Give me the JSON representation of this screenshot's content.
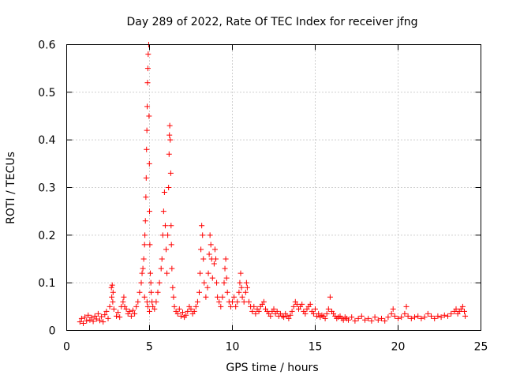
{
  "chart_data": {
    "type": "scatter",
    "title": "Day 289 of 2022, Rate Of TEC Index for receiver jfng",
    "xlabel": "GPS time / hours",
    "ylabel": "ROTI / TECUs",
    "xlim": [
      0,
      25
    ],
    "ylim": [
      0,
      0.6
    ],
    "xticks": [
      0,
      5,
      10,
      15,
      20,
      25
    ],
    "yticks": [
      0,
      0.1,
      0.2,
      0.3,
      0.4,
      0.5,
      0.6
    ],
    "xtick_labels": [
      "0",
      "5",
      "10",
      "15",
      "20",
      "25"
    ],
    "ytick_labels": [
      "0",
      "0.1",
      "0.2",
      "0.3",
      "0.4",
      "0.5",
      "0.6"
    ],
    "grid": true,
    "marker": "+",
    "color": "#ff0000",
    "points": [
      [
        0.8,
        0.018
      ],
      [
        0.9,
        0.025
      ],
      [
        1.0,
        0.015
      ],
      [
        1.1,
        0.028
      ],
      [
        1.2,
        0.02
      ],
      [
        1.3,
        0.032
      ],
      [
        1.4,
        0.022
      ],
      [
        1.5,
        0.027
      ],
      [
        1.6,
        0.019
      ],
      [
        1.7,
        0.03
      ],
      [
        1.8,
        0.024
      ],
      [
        1.9,
        0.035
      ],
      [
        2.0,
        0.021
      ],
      [
        2.1,
        0.029
      ],
      [
        2.2,
        0.018
      ],
      [
        2.3,
        0.033
      ],
      [
        2.4,
        0.04
      ],
      [
        2.5,
        0.025
      ],
      [
        2.6,
        0.05
      ],
      [
        2.7,
        0.09
      ],
      [
        2.75,
        0.095
      ],
      [
        2.8,
        0.08
      ],
      [
        2.72,
        0.07
      ],
      [
        2.78,
        0.06
      ],
      [
        2.85,
        0.045
      ],
      [
        3.0,
        0.03
      ],
      [
        3.1,
        0.038
      ],
      [
        3.2,
        0.028
      ],
      [
        3.3,
        0.05
      ],
      [
        3.4,
        0.06
      ],
      [
        3.45,
        0.07
      ],
      [
        3.5,
        0.05
      ],
      [
        3.6,
        0.045
      ],
      [
        3.7,
        0.035
      ],
      [
        3.8,
        0.04
      ],
      [
        3.9,
        0.03
      ],
      [
        4.0,
        0.042
      ],
      [
        4.1,
        0.035
      ],
      [
        4.2,
        0.05
      ],
      [
        4.3,
        0.06
      ],
      [
        4.4,
        0.08
      ],
      [
        4.5,
        0.1
      ],
      [
        4.55,
        0.12
      ],
      [
        4.6,
        0.13
      ],
      [
        4.65,
        0.15
      ],
      [
        4.7,
        0.18
      ],
      [
        4.72,
        0.2
      ],
      [
        4.75,
        0.23
      ],
      [
        4.78,
        0.28
      ],
      [
        4.8,
        0.32
      ],
      [
        4.82,
        0.38
      ],
      [
        4.84,
        0.42
      ],
      [
        4.86,
        0.47
      ],
      [
        4.88,
        0.52
      ],
      [
        4.9,
        0.55
      ],
      [
        4.92,
        0.58
      ],
      [
        4.95,
        0.6
      ],
      [
        4.97,
        0.45
      ],
      [
        4.99,
        0.35
      ],
      [
        5.0,
        0.25
      ],
      [
        5.02,
        0.18
      ],
      [
        5.05,
        0.12
      ],
      [
        5.08,
        0.1
      ],
      [
        5.1,
        0.08
      ],
      [
        4.85,
        0.06
      ],
      [
        4.7,
        0.07
      ],
      [
        4.9,
        0.05
      ],
      [
        5.0,
        0.04
      ],
      [
        5.15,
        0.06
      ],
      [
        5.2,
        0.05
      ],
      [
        5.3,
        0.045
      ],
      [
        5.4,
        0.06
      ],
      [
        5.5,
        0.08
      ],
      [
        5.6,
        0.1
      ],
      [
        5.7,
        0.13
      ],
      [
        5.75,
        0.15
      ],
      [
        5.8,
        0.2
      ],
      [
        5.85,
        0.25
      ],
      [
        5.9,
        0.29
      ],
      [
        5.95,
        0.22
      ],
      [
        6.0,
        0.17
      ],
      [
        6.05,
        0.12
      ],
      [
        6.1,
        0.2
      ],
      [
        6.15,
        0.3
      ],
      [
        6.18,
        0.37
      ],
      [
        6.2,
        0.41
      ],
      [
        6.22,
        0.43
      ],
      [
        6.25,
        0.4
      ],
      [
        6.28,
        0.33
      ],
      [
        6.3,
        0.22
      ],
      [
        6.32,
        0.18
      ],
      [
        6.35,
        0.13
      ],
      [
        6.4,
        0.09
      ],
      [
        6.45,
        0.07
      ],
      [
        6.5,
        0.05
      ],
      [
        6.6,
        0.04
      ],
      [
        6.7,
        0.035
      ],
      [
        6.8,
        0.045
      ],
      [
        6.9,
        0.03
      ],
      [
        7.0,
        0.038
      ],
      [
        7.1,
        0.028
      ],
      [
        7.2,
        0.032
      ],
      [
        7.3,
        0.04
      ],
      [
        7.4,
        0.05
      ],
      [
        7.5,
        0.045
      ],
      [
        7.6,
        0.035
      ],
      [
        7.7,
        0.04
      ],
      [
        7.8,
        0.05
      ],
      [
        7.9,
        0.06
      ],
      [
        8.0,
        0.08
      ],
      [
        8.05,
        0.12
      ],
      [
        8.1,
        0.17
      ],
      [
        8.15,
        0.22
      ],
      [
        8.2,
        0.2
      ],
      [
        8.25,
        0.15
      ],
      [
        8.3,
        0.1
      ],
      [
        8.4,
        0.07
      ],
      [
        8.5,
        0.09
      ],
      [
        8.55,
        0.12
      ],
      [
        8.6,
        0.16
      ],
      [
        8.65,
        0.2
      ],
      [
        8.7,
        0.18
      ],
      [
        8.75,
        0.15
      ],
      [
        8.8,
        0.11
      ],
      [
        8.9,
        0.14
      ],
      [
        8.95,
        0.17
      ],
      [
        9.0,
        0.15
      ],
      [
        9.05,
        0.1
      ],
      [
        9.1,
        0.07
      ],
      [
        9.2,
        0.06
      ],
      [
        9.3,
        0.05
      ],
      [
        9.4,
        0.07
      ],
      [
        9.5,
        0.1
      ],
      [
        9.55,
        0.13
      ],
      [
        9.6,
        0.15
      ],
      [
        9.65,
        0.11
      ],
      [
        9.7,
        0.08
      ],
      [
        9.8,
        0.06
      ],
      [
        9.9,
        0.05
      ],
      [
        10.0,
        0.06
      ],
      [
        10.1,
        0.07
      ],
      [
        10.2,
        0.05
      ],
      [
        10.3,
        0.06
      ],
      [
        10.4,
        0.08
      ],
      [
        10.45,
        0.1
      ],
      [
        10.5,
        0.12
      ],
      [
        10.55,
        0.09
      ],
      [
        10.6,
        0.07
      ],
      [
        10.7,
        0.06
      ],
      [
        10.8,
        0.08
      ],
      [
        10.85,
        0.1
      ],
      [
        10.9,
        0.09
      ],
      [
        11.0,
        0.06
      ],
      [
        11.1,
        0.05
      ],
      [
        11.2,
        0.04
      ],
      [
        11.3,
        0.05
      ],
      [
        11.4,
        0.035
      ],
      [
        11.5,
        0.045
      ],
      [
        11.6,
        0.04
      ],
      [
        11.7,
        0.05
      ],
      [
        11.8,
        0.055
      ],
      [
        11.9,
        0.06
      ],
      [
        12.0,
        0.045
      ],
      [
        12.1,
        0.04
      ],
      [
        12.2,
        0.035
      ],
      [
        12.3,
        0.03
      ],
      [
        12.4,
        0.04
      ],
      [
        12.5,
        0.045
      ],
      [
        12.6,
        0.035
      ],
      [
        12.7,
        0.04
      ],
      [
        12.8,
        0.03
      ],
      [
        12.9,
        0.035
      ],
      [
        13.0,
        0.03
      ],
      [
        13.1,
        0.028
      ],
      [
        13.2,
        0.035
      ],
      [
        13.3,
        0.03
      ],
      [
        13.4,
        0.025
      ],
      [
        13.5,
        0.032
      ],
      [
        13.6,
        0.04
      ],
      [
        13.7,
        0.05
      ],
      [
        13.8,
        0.06
      ],
      [
        13.9,
        0.055
      ],
      [
        14.0,
        0.045
      ],
      [
        14.1,
        0.05
      ],
      [
        14.2,
        0.055
      ],
      [
        14.3,
        0.04
      ],
      [
        14.4,
        0.035
      ],
      [
        14.5,
        0.045
      ],
      [
        14.6,
        0.05
      ],
      [
        14.7,
        0.055
      ],
      [
        14.8,
        0.04
      ],
      [
        14.9,
        0.035
      ],
      [
        15.0,
        0.045
      ],
      [
        15.1,
        0.03
      ],
      [
        15.2,
        0.035
      ],
      [
        15.3,
        0.028
      ],
      [
        15.4,
        0.032
      ],
      [
        15.5,
        0.03
      ],
      [
        15.6,
        0.025
      ],
      [
        15.7,
        0.035
      ],
      [
        15.8,
        0.045
      ],
      [
        15.9,
        0.07
      ],
      [
        16.0,
        0.04
      ],
      [
        16.1,
        0.035
      ],
      [
        16.2,
        0.03
      ],
      [
        16.3,
        0.025
      ],
      [
        16.4,
        0.028
      ],
      [
        16.5,
        0.03
      ],
      [
        16.6,
        0.025
      ],
      [
        16.7,
        0.022
      ],
      [
        16.8,
        0.028
      ],
      [
        16.9,
        0.025
      ],
      [
        17.0,
        0.022
      ],
      [
        17.2,
        0.028
      ],
      [
        17.4,
        0.02
      ],
      [
        17.6,
        0.025
      ],
      [
        17.8,
        0.03
      ],
      [
        18.0,
        0.022
      ],
      [
        18.2,
        0.025
      ],
      [
        18.4,
        0.02
      ],
      [
        18.6,
        0.028
      ],
      [
        18.8,
        0.022
      ],
      [
        19.0,
        0.025
      ],
      [
        19.2,
        0.02
      ],
      [
        19.4,
        0.028
      ],
      [
        19.6,
        0.035
      ],
      [
        19.7,
        0.045
      ],
      [
        19.8,
        0.03
      ],
      [
        20.0,
        0.025
      ],
      [
        20.2,
        0.028
      ],
      [
        20.4,
        0.035
      ],
      [
        20.5,
        0.05
      ],
      [
        20.6,
        0.03
      ],
      [
        20.8,
        0.025
      ],
      [
        21.0,
        0.028
      ],
      [
        21.2,
        0.03
      ],
      [
        21.4,
        0.025
      ],
      [
        21.6,
        0.028
      ],
      [
        21.8,
        0.035
      ],
      [
        22.0,
        0.03
      ],
      [
        22.2,
        0.025
      ],
      [
        22.4,
        0.03
      ],
      [
        22.6,
        0.028
      ],
      [
        22.8,
        0.032
      ],
      [
        23.0,
        0.03
      ],
      [
        23.2,
        0.035
      ],
      [
        23.4,
        0.04
      ],
      [
        23.5,
        0.045
      ],
      [
        23.6,
        0.035
      ],
      [
        23.7,
        0.04
      ],
      [
        23.8,
        0.045
      ],
      [
        23.9,
        0.05
      ],
      [
        24.0,
        0.04
      ],
      [
        24.05,
        0.03
      ]
    ]
  }
}
